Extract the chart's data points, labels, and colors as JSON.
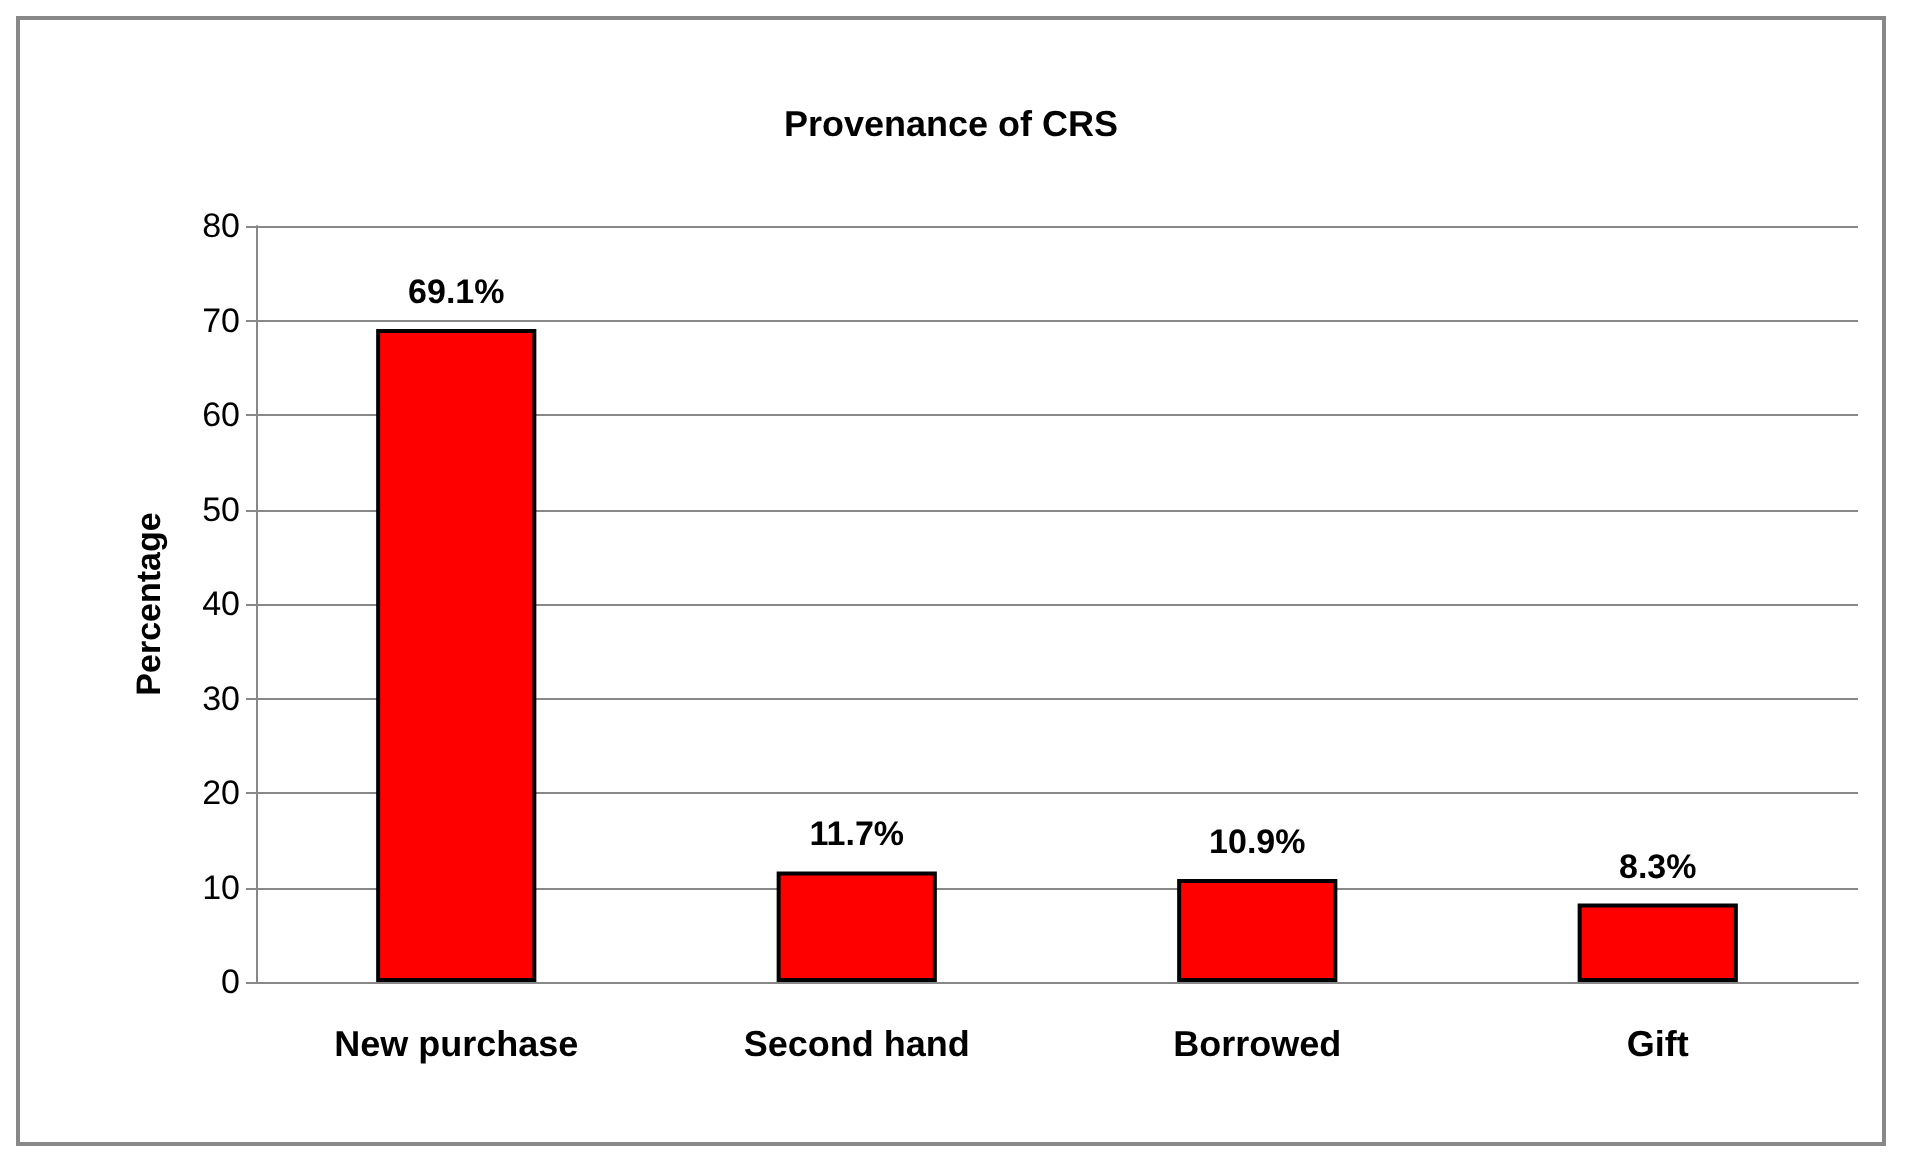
{
  "chart_data": {
    "type": "bar",
    "title": "Provenance of CRS",
    "ylabel": "Percentage",
    "categories": [
      "New purchase",
      "Second hand",
      "Borrowed",
      "Gift"
    ],
    "values": [
      69.1,
      11.7,
      10.9,
      8.3
    ],
    "value_labels": [
      "69.1%",
      "11.7%",
      "10.9%",
      "8.3%"
    ],
    "color": "#ff0000",
    "ylim": [
      0,
      80
    ],
    "yticks": [
      0,
      10,
      20,
      30,
      40,
      50,
      60,
      70,
      80
    ],
    "grid": "y"
  }
}
